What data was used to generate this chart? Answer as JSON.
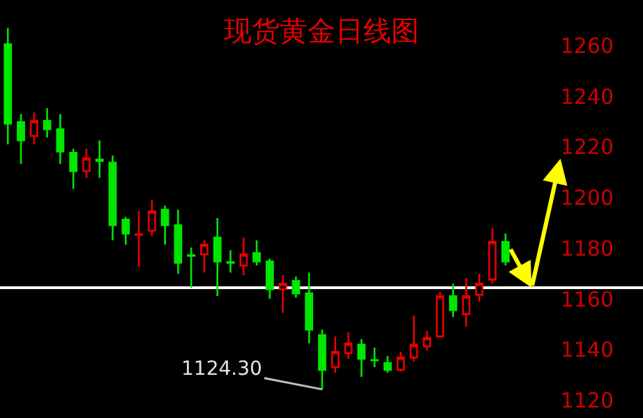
{
  "chart_data": {
    "type": "candlestick",
    "title": "现货黄金日线图",
    "categories": [
      null,
      null,
      null,
      null,
      null,
      null,
      null,
      null,
      null,
      null,
      null,
      null,
      null,
      null,
      null,
      null,
      null,
      null,
      null,
      null,
      null,
      null,
      null,
      null,
      null,
      null,
      null,
      null,
      null,
      null,
      null,
      null,
      null,
      null,
      null,
      null,
      null,
      null,
      null
    ],
    "ohlc": [
      [
        1260.5,
        1267,
        1221,
        1229.2
      ],
      [
        1229.8,
        1233,
        1213.3,
        1222.6
      ],
      [
        1224.3,
        1233.6,
        1221,
        1230.3
      ],
      [
        1230.3,
        1235.3,
        1223.7,
        1227
      ],
      [
        1227,
        1233,
        1213.3,
        1218.2
      ],
      [
        1217.7,
        1219.3,
        1203.4,
        1210.5
      ],
      [
        1210.5,
        1219.3,
        1207.8,
        1215.5
      ],
      [
        1215,
        1222.6,
        1207.8,
        1214.5
      ],
      [
        1213.8,
        1216.6,
        1183.1,
        1189.1
      ],
      [
        1191.3,
        1192.4,
        1181.4,
        1185.8
      ],
      [
        1185.3,
        1194.6,
        1172.6,
        1185.5
      ],
      [
        1186.9,
        1199,
        1184.7,
        1194.6
      ],
      [
        1195.2,
        1196.8,
        1181.4,
        1189.1
      ],
      [
        1189.1,
        1195.2,
        1169.9,
        1174.3
      ],
      [
        1177.3,
        1180.3,
        1164.4,
        1177
      ],
      [
        1177.6,
        1183.1,
        1170.4,
        1181.4
      ],
      [
        1184.2,
        1191.9,
        1161.1,
        1174.8
      ],
      [
        1174.5,
        1179.2,
        1170.4,
        1174.3
      ],
      [
        1173.2,
        1184.2,
        1169.3,
        1177.6
      ],
      [
        1178.1,
        1183.1,
        1173.2,
        1174.8
      ],
      [
        1174.8,
        1175.9,
        1160,
        1163.8
      ],
      [
        1163.8,
        1169.3,
        1154.5,
        1166
      ],
      [
        1167.1,
        1168.8,
        1160.5,
        1162.2
      ],
      [
        1162.2,
        1170.4,
        1142.4,
        1147.9
      ],
      [
        1145.7,
        1147.9,
        1124.3,
        1132
      ],
      [
        1133.1,
        1145.2,
        1130.9,
        1139.1
      ],
      [
        1138.6,
        1146.8,
        1136.4,
        1142.4
      ],
      [
        1141.9,
        1144.1,
        1129.2,
        1136.4
      ],
      [
        1135.9,
        1140.8,
        1133.1,
        1135.8
      ],
      [
        1134.7,
        1137.5,
        1130.9,
        1132
      ],
      [
        1132,
        1139.1,
        1131.4,
        1136.9
      ],
      [
        1136.9,
        1153.4,
        1135.3,
        1141.9
      ],
      [
        1141.3,
        1147.4,
        1139.7,
        1144.6
      ],
      [
        1145.2,
        1162.7,
        1144.6,
        1161.1
      ],
      [
        1161.1,
        1166,
        1152.9,
        1155.6
      ],
      [
        1154,
        1168.2,
        1149,
        1161.1
      ],
      [
        1161.6,
        1169.9,
        1158.9,
        1166
      ],
      [
        1167.7,
        1188,
        1166,
        1182.5
      ],
      [
        1182.5,
        1185.8,
        1173.2,
        1174.8
      ]
    ],
    "colors": [
      "#00e600",
      "#00e600",
      "#e60000",
      "#00e600",
      "#00e600",
      "#00e600",
      "#e60000",
      "#00e600",
      "#00e600",
      "#00e600",
      "#e60000",
      "#e60000",
      "#00e600",
      "#00e600",
      "#00e600",
      "#e60000",
      "#00e600",
      "#00e600",
      "#e60000",
      "#00e600",
      "#00e600",
      "#e60000",
      "#00e600",
      "#00e600",
      "#00e600",
      "#e60000",
      "#e60000",
      "#00e600",
      "#00e600",
      "#00e600",
      "#e60000",
      "#e60000",
      "#e60000",
      "#e60000",
      "#00e600",
      "#e60000",
      "#e60000",
      "#e60000",
      "#00e600"
    ],
    "ylim": [
      1113,
      1278
    ],
    "yticks": [
      1120,
      1140,
      1160,
      1180,
      1200,
      1220,
      1240,
      1260
    ],
    "ref_lines": [
      {
        "axis": "y",
        "value": 1164.4,
        "color": "#ffffff"
      }
    ],
    "annotations": [
      "1124.30"
    ],
    "grid": false,
    "tick_labels": "y"
  }
}
